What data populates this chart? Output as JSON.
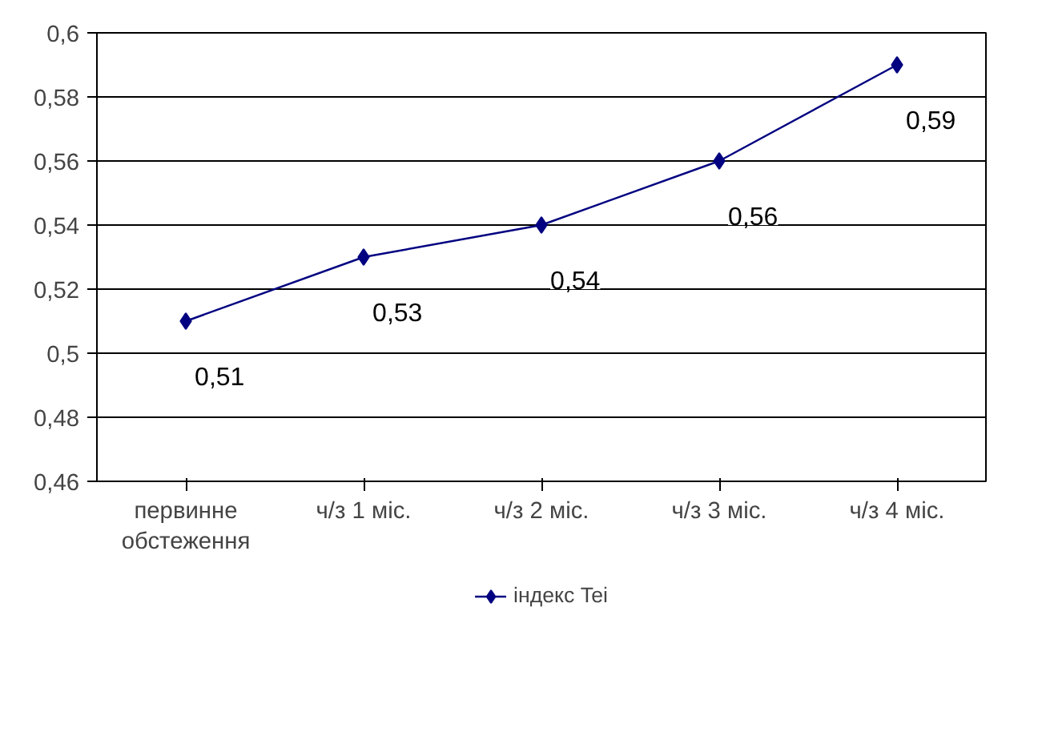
{
  "chart_data": {
    "type": "line",
    "categories": [
      "первинне обстеження",
      "ч/з 1 міс.",
      "ч/з 2 міс.",
      "ч/з 3 міс.",
      "ч/з 4 міс."
    ],
    "series": [
      {
        "name": "індекс Tei",
        "color": "#000080",
        "values": [
          0.51,
          0.53,
          0.54,
          0.56,
          0.59
        ],
        "value_labels": [
          "0,51",
          "0,53",
          "0,54",
          "0,56",
          "0,59"
        ]
      }
    ],
    "ylim": [
      0.46,
      0.6
    ],
    "yticks": [
      {
        "value": 0.46,
        "label": "0,46"
      },
      {
        "value": 0.48,
        "label": "0,48"
      },
      {
        "value": 0.5,
        "label": "0,5"
      },
      {
        "value": 0.52,
        "label": "0,52"
      },
      {
        "value": 0.54,
        "label": "0,54"
      },
      {
        "value": 0.56,
        "label": "0,56"
      },
      {
        "value": 0.58,
        "label": "0,58"
      },
      {
        "value": 0.6,
        "label": "0,6"
      }
    ],
    "grid": "y",
    "legend": "bottom",
    "marker": "diamond",
    "line_style": "solid"
  }
}
